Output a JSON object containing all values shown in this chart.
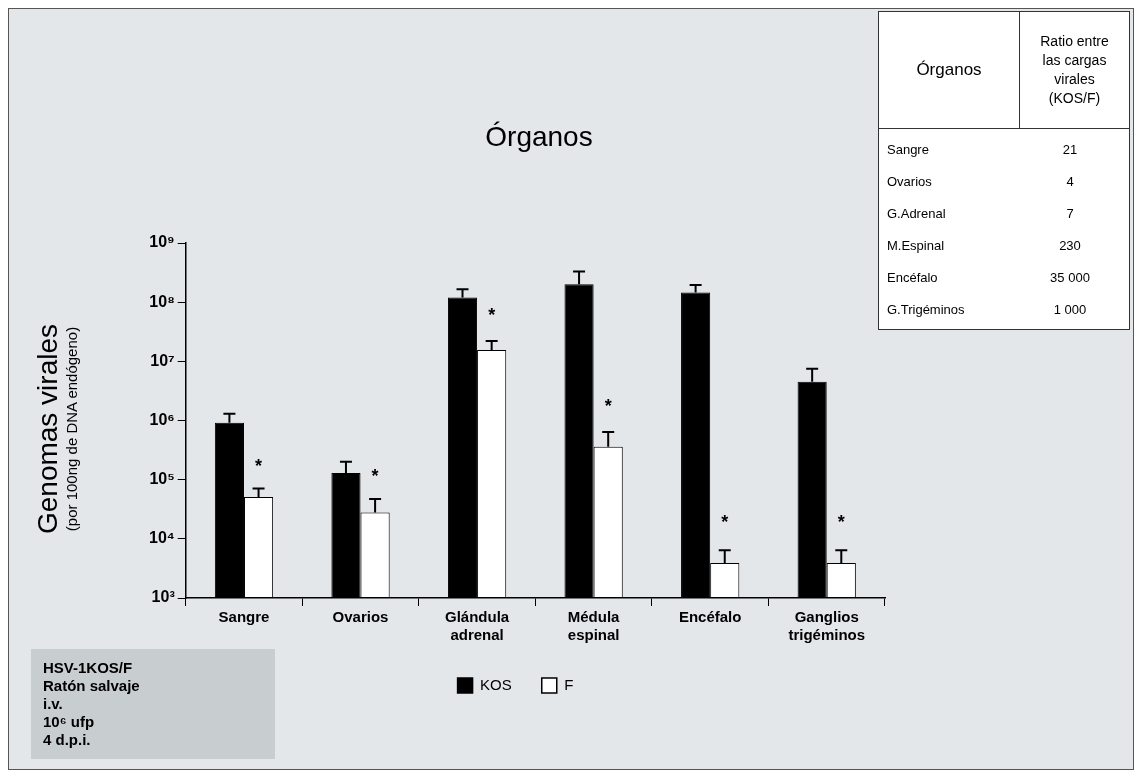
{
  "chart_data": [
    {
      "type": "bar",
      "title": "Órganos",
      "ylabel": "Genomas virales\n(por 100ng de DNA endógeno)",
      "categories": [
        "Sangre",
        "Ovarios",
        "Glándula adrenal",
        "Médula espinal",
        "Encéfalo",
        "Ganglios trigéminos"
      ],
      "series": [
        {
          "name": "KOS",
          "color": "#000000",
          "values": [
            920000,
            130000,
            120000000,
            200000000,
            146000000,
            4500000
          ],
          "errors": [
            [
              920000,
              1300000
            ],
            [
              130000,
              200000
            ],
            [
              120000000,
              166000000
            ],
            [
              200000000,
              330000000
            ],
            [
              146000000,
              196000000
            ],
            [
              4500000,
              7500000
            ]
          ]
        },
        {
          "name": "F",
          "color": "#ffffff",
          "values": [
            51000,
            28000,
            15600000,
            360000,
            3900,
            3900
          ],
          "errors": [
            [
              51000,
              71000
            ],
            [
              28000,
              47000
            ],
            [
              15600000,
              22000000
            ],
            [
              360000,
              640000
            ],
            [
              3900,
              6400
            ],
            [
              3900,
              6400
            ]
          ]
        }
      ],
      "log": "y",
      "ylim": [
        1000,
        1000000000
      ],
      "yticks": [
        {
          "value": 1000,
          "label": "10³"
        },
        {
          "value": 10000,
          "label": "10⁴"
        },
        {
          "value": 100000,
          "label": "10⁵"
        },
        {
          "value": 1000000,
          "label": "10⁶"
        },
        {
          "value": 10000000,
          "label": "10⁷"
        },
        {
          "value": 100000000,
          "label": "10⁸"
        },
        {
          "value": 1000000000,
          "label": "10⁹"
        }
      ],
      "grid": false,
      "legend": "bottom",
      "annotations": [
        {
          "text": "*",
          "x": "Sangre",
          "y": 190000
        },
        {
          "text": "*",
          "x": "Ovarios",
          "y": 130000
        },
        {
          "text": "*",
          "x": "Glándula adrenal",
          "y": 67000000
        },
        {
          "text": "*",
          "x": "Médula espinal",
          "y": 2000000
        },
        {
          "text": "*",
          "x": "Encéfalo",
          "y": 22000
        },
        {
          "text": "*",
          "x": "Ganglios trigéminos",
          "y": 22000
        },
        "HSV-1KOS/F",
        "Ratón salvaje",
        "i.v.",
        "10⁶ ufp",
        "4 d.p.i."
      ]
    },
    {
      "type": "other",
      "xlabel": "Órganos",
      "ylabel": "Ratio entre las cargas virales (KOS/F)",
      "categories": [
        "Sangre",
        "Ovarios",
        "G.Adrenal",
        "M.Espinal",
        "Encéfalo",
        "G.Trigéminos"
      ],
      "value_labels": [
        "21",
        "4",
        "7",
        "230",
        "35 000",
        "1 000"
      ]
    }
  ]
}
